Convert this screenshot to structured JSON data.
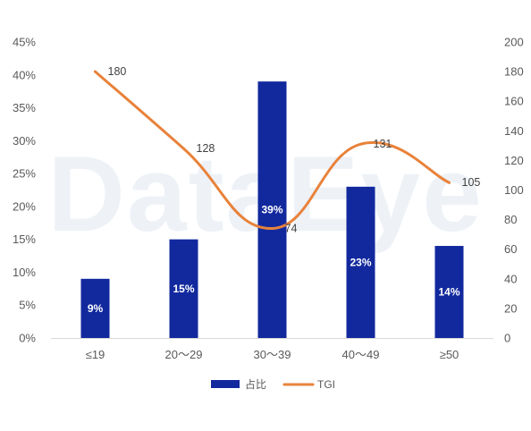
{
  "watermark": "DataEye",
  "chart_data": {
    "type": "bar",
    "categories": [
      "≤19",
      "20～29",
      "30～39",
      "40～49",
      "≥50"
    ],
    "series": [
      {
        "name": "占比",
        "type": "bar",
        "axis": "left",
        "color": "#12299E",
        "values": [
          9,
          15,
          39,
          23,
          14
        ],
        "labels": [
          "9%",
          "15%",
          "39%",
          "23%",
          "14%"
        ]
      },
      {
        "name": "TGI",
        "type": "line",
        "axis": "right",
        "color": "#E8823A",
        "values": [
          180,
          128,
          74,
          131,
          105
        ],
        "labels": [
          "180",
          "128",
          "74",
          "131",
          "105"
        ]
      }
    ],
    "y_left": {
      "ylim": [
        0,
        45
      ],
      "ticks": [
        "0%",
        "5%",
        "10%",
        "15%",
        "20%",
        "25%",
        "30%",
        "35%",
        "40%",
        "45%"
      ]
    },
    "y_right": {
      "ylim": [
        0,
        200
      ],
      "ticks": [
        "0",
        "20",
        "40",
        "60",
        "80",
        "100",
        "120",
        "140",
        "160",
        "180",
        "200"
      ]
    },
    "title": "",
    "xlabel": "",
    "grid": false,
    "legend_position": "bottom-center"
  }
}
